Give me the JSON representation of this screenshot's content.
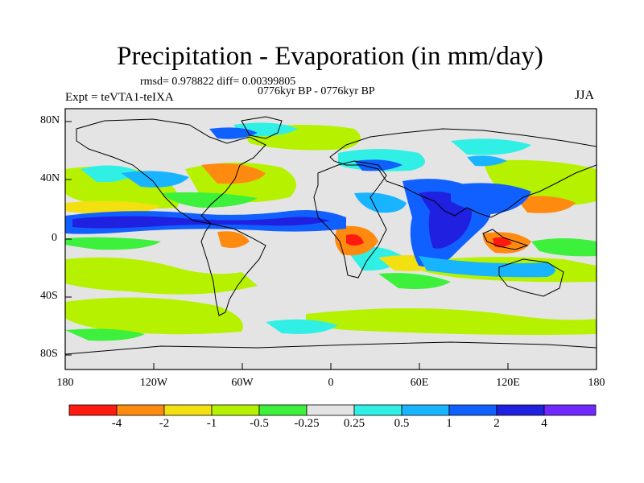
{
  "title": "Precipitation - Evaporation (in mm/day)",
  "stats": "rmsd= 0.978822 diff= 0.00399805",
  "period": "0776kyr BP - 0776kyr BP",
  "experiment": "Expt = teVTA1-teIXA",
  "season": "JJA",
  "lat_ticks": [
    "80N",
    "40N",
    "0",
    "40S",
    "80S"
  ],
  "lon_ticks": [
    "180",
    "120W",
    "60W",
    "0",
    "60E",
    "120E",
    "180"
  ],
  "colorbar": {
    "labels": [
      "-4",
      "-2",
      "-1",
      "-0.5",
      "-0.25",
      "0.25",
      "0.5",
      "1",
      "2",
      "4"
    ],
    "colors": [
      "#ff1a10",
      "#ff8a10",
      "#f2e010",
      "#b6f200",
      "#3cf03c",
      "#e4e4e4",
      "#30f0e6",
      "#18b4ff",
      "#1060ff",
      "#2020e0",
      "#7028ff"
    ]
  },
  "colors": {
    "neutral": "#e4e4e4",
    "light_green": "#b6f200",
    "green": "#3cf03c",
    "yellow": "#f2e010",
    "orange": "#ff8a10",
    "red": "#ff1a10",
    "cyan": "#30f0e6",
    "light_blue": "#18b4ff",
    "blue": "#1060ff",
    "dark_blue": "#2020e0"
  }
}
